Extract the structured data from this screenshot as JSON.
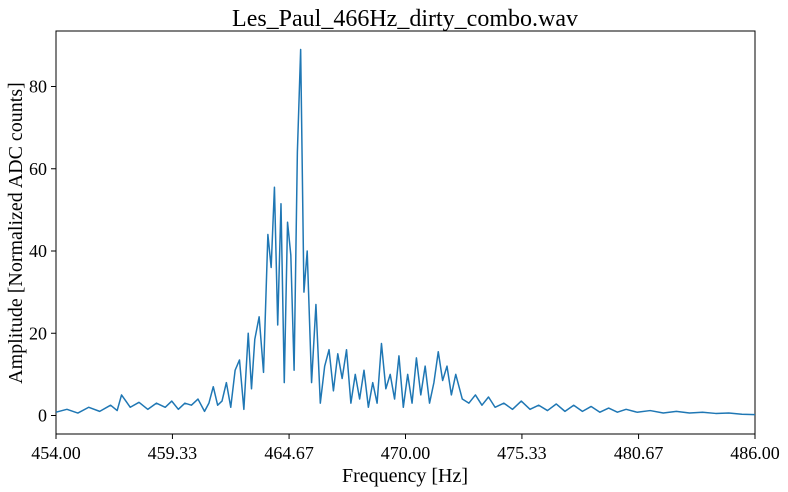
{
  "chart_data": {
    "type": "line",
    "title": "Les_Paul_466Hz_dirty_combo.wav",
    "xlabel": "Frequency [Hz]",
    "ylabel": "Amplitude [Normalized ADC counts]",
    "xlim": [
      454.0,
      486.0
    ],
    "ylim": [
      -4.5,
      93.5
    ],
    "xticks": [
      454.0,
      459.33,
      464.67,
      470.0,
      475.33,
      480.67,
      486.0
    ],
    "xtick_labels": [
      "454.00",
      "459.33",
      "464.67",
      "470.00",
      "475.33",
      "480.67",
      "486.00"
    ],
    "yticks": [
      0,
      20,
      40,
      60,
      80
    ],
    "ytick_labels": [
      "0",
      "20",
      "40",
      "60",
      "80"
    ],
    "grid": false,
    "legend": "none",
    "line_color": "#1f77b4",
    "series": [
      {
        "x": [
          454.0,
          454.5,
          455.0,
          455.5,
          456.0,
          456.5,
          456.8,
          457.0,
          457.4,
          457.8,
          458.2,
          458.6,
          459.0,
          459.3,
          459.6,
          459.9,
          460.2,
          460.5,
          460.8,
          461.0,
          461.2,
          461.4,
          461.6,
          461.8,
          462.0,
          462.2,
          462.4,
          462.6,
          462.8,
          462.95,
          463.1,
          463.3,
          463.5,
          463.7,
          463.85,
          464.0,
          464.15,
          464.3,
          464.45,
          464.6,
          464.75,
          464.9,
          465.05,
          465.2,
          465.35,
          465.5,
          465.7,
          465.9,
          466.1,
          466.3,
          466.5,
          466.7,
          466.9,
          467.1,
          467.3,
          467.5,
          467.7,
          467.9,
          468.1,
          468.3,
          468.5,
          468.7,
          468.9,
          469.1,
          469.3,
          469.5,
          469.7,
          469.9,
          470.1,
          470.3,
          470.5,
          470.7,
          470.9,
          471.1,
          471.3,
          471.5,
          471.7,
          471.9,
          472.1,
          472.3,
          472.6,
          472.9,
          473.2,
          473.5,
          473.8,
          474.1,
          474.5,
          474.9,
          475.3,
          475.7,
          476.1,
          476.5,
          476.9,
          477.3,
          477.7,
          478.1,
          478.5,
          478.9,
          479.3,
          479.7,
          480.1,
          480.6,
          481.2,
          481.8,
          482.4,
          483.0,
          483.6,
          484.2,
          484.8,
          485.4,
          486.0
        ],
        "values": [
          0.8,
          1.5,
          0.6,
          2.0,
          1.0,
          2.5,
          1.2,
          5.0,
          2.0,
          3.2,
          1.5,
          3.0,
          2.0,
          3.5,
          1.5,
          3.0,
          2.5,
          4.0,
          1.0,
          3.0,
          7.0,
          2.5,
          3.5,
          8.0,
          2.0,
          11.0,
          13.5,
          1.5,
          20.0,
          6.5,
          18.5,
          24.0,
          10.5,
          44.0,
          36.0,
          55.5,
          22.0,
          51.5,
          8.0,
          47.0,
          39.0,
          11.0,
          64.0,
          89.0,
          30.0,
          40.0,
          8.0,
          27.0,
          3.0,
          12.0,
          16.0,
          6.0,
          15.0,
          9.0,
          16.0,
          3.0,
          10.0,
          4.0,
          11.0,
          2.0,
          8.0,
          3.0,
          17.5,
          6.5,
          10.0,
          4.0,
          14.5,
          2.0,
          10.0,
          3.0,
          14.0,
          5.0,
          12.0,
          3.0,
          8.0,
          15.5,
          8.5,
          12.0,
          5.0,
          10.0,
          4.0,
          3.0,
          5.0,
          2.5,
          4.5,
          2.0,
          3.0,
          1.5,
          3.5,
          1.5,
          2.5,
          1.2,
          2.8,
          1.0,
          2.5,
          1.0,
          2.2,
          0.8,
          1.8,
          0.8,
          1.5,
          0.8,
          1.2,
          0.6,
          1.0,
          0.6,
          0.8,
          0.5,
          0.6,
          0.3,
          0.2
        ]
      }
    ]
  }
}
